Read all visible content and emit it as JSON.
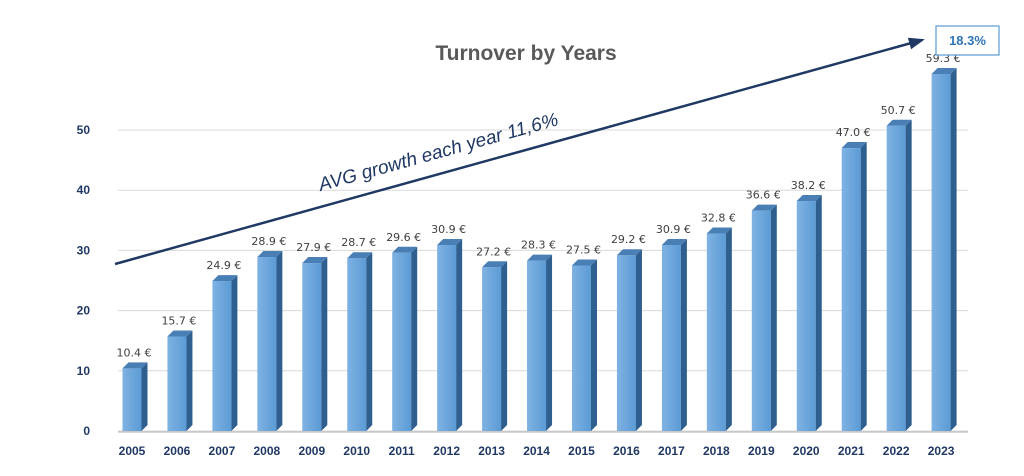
{
  "chart_data": {
    "type": "bar",
    "title": "Turnover by Years",
    "categories": [
      "2005",
      "2006",
      "2007",
      "2008",
      "2009",
      "2010",
      "2011",
      "2012",
      "2013",
      "2014",
      "2015",
      "2016",
      "2017",
      "2018",
      "2019",
      "2020",
      "2021",
      "2022",
      "2023"
    ],
    "values": [
      10.4,
      15.7,
      24.9,
      28.9,
      27.9,
      28.7,
      29.6,
      30.9,
      27.2,
      28.3,
      27.5,
      29.2,
      30.9,
      32.8,
      36.6,
      38.2,
      47.0,
      50.7,
      59.3
    ],
    "data_labels": [
      "10.4 €",
      "15.7 €",
      "24.9 €",
      "28.9 €",
      "27.9 €",
      "28.7 €",
      "29.6 €",
      "30.9 €",
      "27.2 €",
      "28.3 €",
      "27.5 €",
      "29.2 €",
      "30.9 €",
      "32.8 €",
      "36.6 €",
      "38.2 €",
      "47.0 €",
      "50.7 €",
      "59.3 €"
    ],
    "y_ticks": [
      "0",
      "10",
      "20",
      "30",
      "40",
      "50"
    ],
    "ylim": [
      0,
      59
    ],
    "xlabel": "",
    "ylabel": "",
    "grid": true,
    "annotation": "AVG growth each year 11,6%",
    "badge": "18.3%",
    "colors": {
      "bar_front": "#5b9bd5",
      "bar_light": "#7fb2e3",
      "bar_side": "#2e5f8f",
      "bar_top": "#4a7fb5",
      "grid": "#d9d9d9",
      "arrow": "#1f3864",
      "badge_border": "#5b9bd5"
    }
  }
}
